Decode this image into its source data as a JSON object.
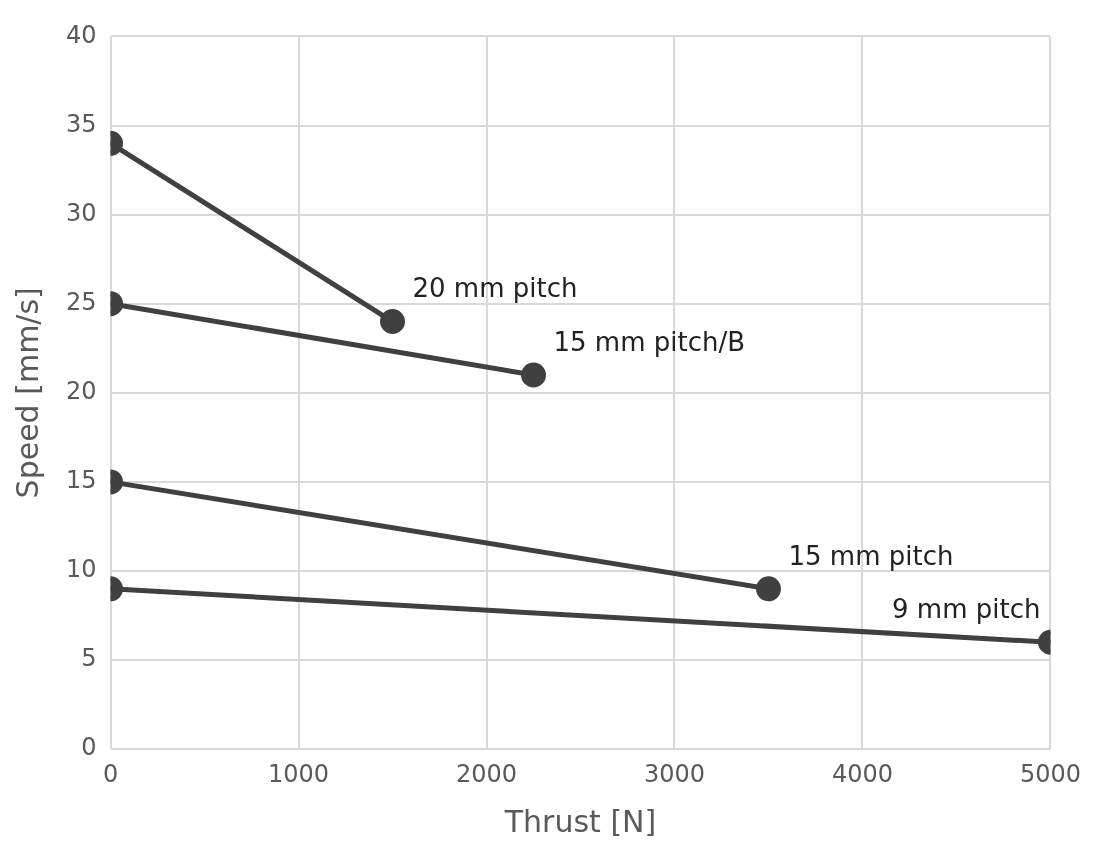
{
  "chart_data": {
    "type": "line",
    "xlabel": "Thrust [N]",
    "ylabel": "Speed [mm/s]",
    "xlim": [
      0,
      5000
    ],
    "xticks": [
      0,
      1000,
      2000,
      3000,
      4000,
      5000
    ],
    "ylim": [
      0,
      40
    ],
    "yticks": [
      0,
      5,
      10,
      15,
      20,
      25,
      30,
      35,
      40
    ],
    "grid": true,
    "legend": false,
    "marker": "circle",
    "line_style": "solid",
    "series": [
      {
        "name": "20 mm pitch",
        "color": "#404040",
        "x": [
          0,
          1500
        ],
        "values": [
          34,
          24
        ]
      },
      {
        "name": "15 mm pitch/B",
        "color": "#404040",
        "x": [
          0,
          2250
        ],
        "values": [
          25,
          21
        ]
      },
      {
        "name": "15 mm pitch",
        "color": "#404040",
        "x": [
          0,
          3500
        ],
        "values": [
          15,
          9
        ]
      },
      {
        "name": "9 mm pitch",
        "color": "#404040",
        "x": [
          0,
          5000
        ],
        "values": [
          9,
          6
        ]
      }
    ]
  }
}
